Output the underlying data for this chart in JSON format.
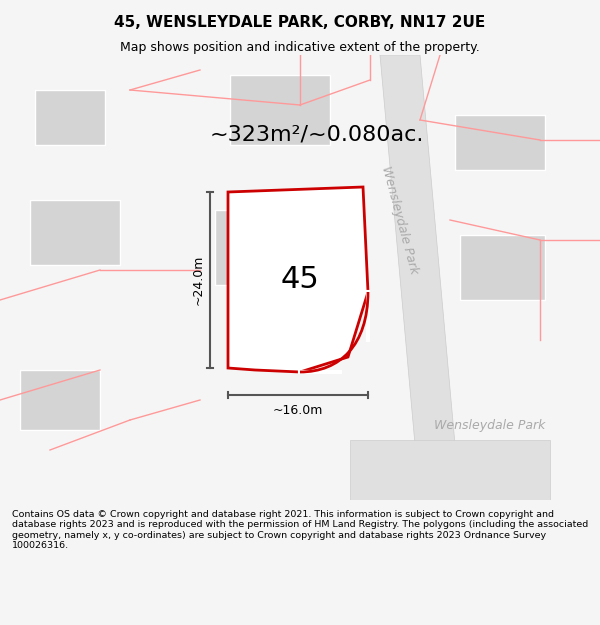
{
  "title": "45, WENSLEYDALE PARK, CORBY, NN17 2UE",
  "subtitle": "Map shows position and indicative extent of the property.",
  "area_text": "~323m²/~0.080ac.",
  "number_label": "45",
  "width_label": "~16.0m",
  "height_label": "~24.0m",
  "street_label_v": "Wensleydale Park",
  "street_label_h": "Wensleydale Park",
  "footer_text": "Contains OS data © Crown copyright and database right 2021. This information is subject to Crown copyright and database rights 2023 and is reproduced with the permission of HM Land Registry. The polygons (including the associated geometry, namely x, y co-ordinates) are subject to Crown copyright and database rights 2023 Ordnance Survey 100026316.",
  "bg_color": "#f5f5f5",
  "map_bg": "#ffffff",
  "plot_border_color": "#cc0000",
  "building_fill": "#d0d0d0",
  "road_fill": "#d8d8d8",
  "pink_line_color": "#ff9999",
  "dim_line_color": "#555555"
}
